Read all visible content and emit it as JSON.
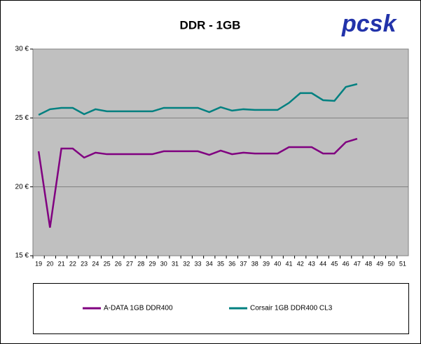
{
  "chart_data": {
    "type": "line",
    "title": "DDR - 1GB",
    "logo": "pcsk",
    "categories": [
      "19",
      "20",
      "21",
      "22",
      "23",
      "24",
      "25",
      "26",
      "27",
      "28",
      "29",
      "30",
      "31",
      "32",
      "33",
      "34",
      "35",
      "36",
      "37",
      "38",
      "39",
      "40",
      "41",
      "42",
      "43",
      "44",
      "45",
      "46",
      "47",
      "48",
      "49",
      "50",
      "51"
    ],
    "series": [
      {
        "name": "A-DATA 1GB DDR400",
        "color": "#800080",
        "values": [
          22.58,
          17.04,
          22.78,
          22.78,
          22.12,
          22.48,
          22.37,
          22.37,
          22.37,
          22.37,
          22.37,
          22.58,
          22.58,
          22.58,
          22.58,
          22.32,
          22.63,
          22.37,
          22.48,
          22.42,
          22.42,
          22.42,
          22.88,
          22.88,
          22.88,
          22.42,
          22.42,
          23.24,
          23.49,
          null,
          null,
          null,
          null
        ]
      },
      {
        "name": "Corsair 1GB DDR400 CL3",
        "color": "#008080",
        "values": [
          25.22,
          25.63,
          25.73,
          25.73,
          25.27,
          25.63,
          25.48,
          25.48,
          25.48,
          25.48,
          25.48,
          25.73,
          25.73,
          25.73,
          25.73,
          25.42,
          25.78,
          25.53,
          25.63,
          25.58,
          25.58,
          25.58,
          26.09,
          26.8,
          26.8,
          26.29,
          26.24,
          27.25,
          27.46,
          null,
          null,
          null,
          null
        ]
      }
    ],
    "ylim": [
      15,
      30
    ],
    "yticks": [
      {
        "value": 15,
        "label": "15 €"
      },
      {
        "value": 20,
        "label": "20 €"
      },
      {
        "value": 25,
        "label": "25 €"
      },
      {
        "value": 30,
        "label": "30 €"
      }
    ],
    "grid": true
  }
}
